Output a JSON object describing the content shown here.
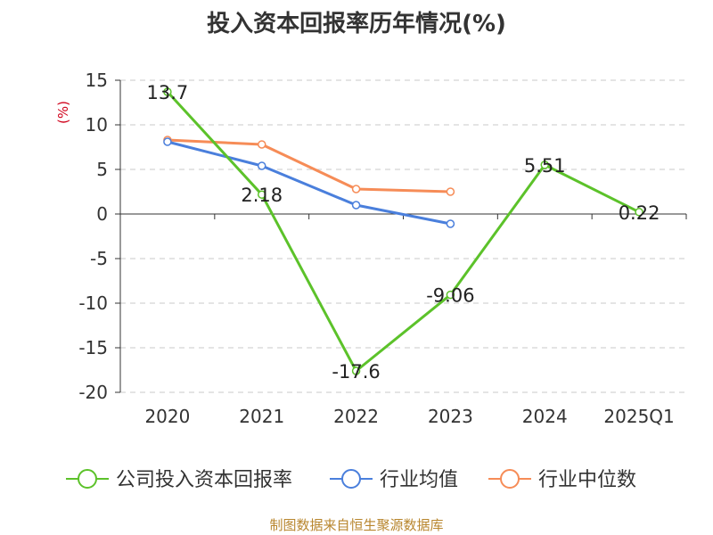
{
  "title": "投入资本回报率历年情况(%)",
  "source": "制图数据来自恒生聚源数据库",
  "chart_data": {
    "type": "line",
    "title": "投入资本回报率历年情况(%)",
    "ylabel": "(%)",
    "xlabel": "",
    "categories": [
      "2020",
      "2021",
      "2022",
      "2023",
      "2024",
      "2025Q1"
    ],
    "ylim": [
      -20,
      15
    ],
    "yticks": [
      15,
      10,
      5,
      0,
      -5,
      -10,
      -15,
      -20
    ],
    "grid": true,
    "legend_position": "bottom",
    "series": [
      {
        "name": "公司投入资本回报率",
        "color": "#5cc22a",
        "values": [
          13.7,
          2.18,
          -17.6,
          -9.06,
          5.51,
          0.22
        ],
        "labels": [
          "13.7",
          "2.18",
          "-17.6",
          "-9.06",
          "5.51",
          "0.22"
        ]
      },
      {
        "name": "行业均值",
        "color": "#4a7fdc",
        "values": [
          8.1,
          5.4,
          1.0,
          -1.1,
          null,
          null
        ]
      },
      {
        "name": "行业中位数",
        "color": "#f68c57",
        "values": [
          8.3,
          7.8,
          2.8,
          2.5,
          null,
          null
        ]
      }
    ]
  }
}
